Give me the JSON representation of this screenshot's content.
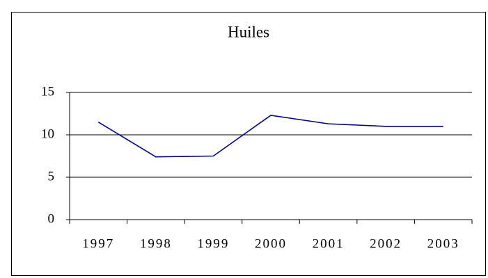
{
  "chart_data": {
    "type": "line",
    "title": "Huiles",
    "categories": [
      "1997",
      "1998",
      "1999",
      "2000",
      "2001",
      "2002",
      "2003"
    ],
    "values": [
      11.5,
      7.4,
      7.5,
      12.3,
      11.3,
      11.0,
      11.0
    ],
    "color": "#000080",
    "ylim": [
      0,
      15
    ],
    "yticks": [
      0,
      5,
      10,
      15
    ],
    "grid": true
  }
}
